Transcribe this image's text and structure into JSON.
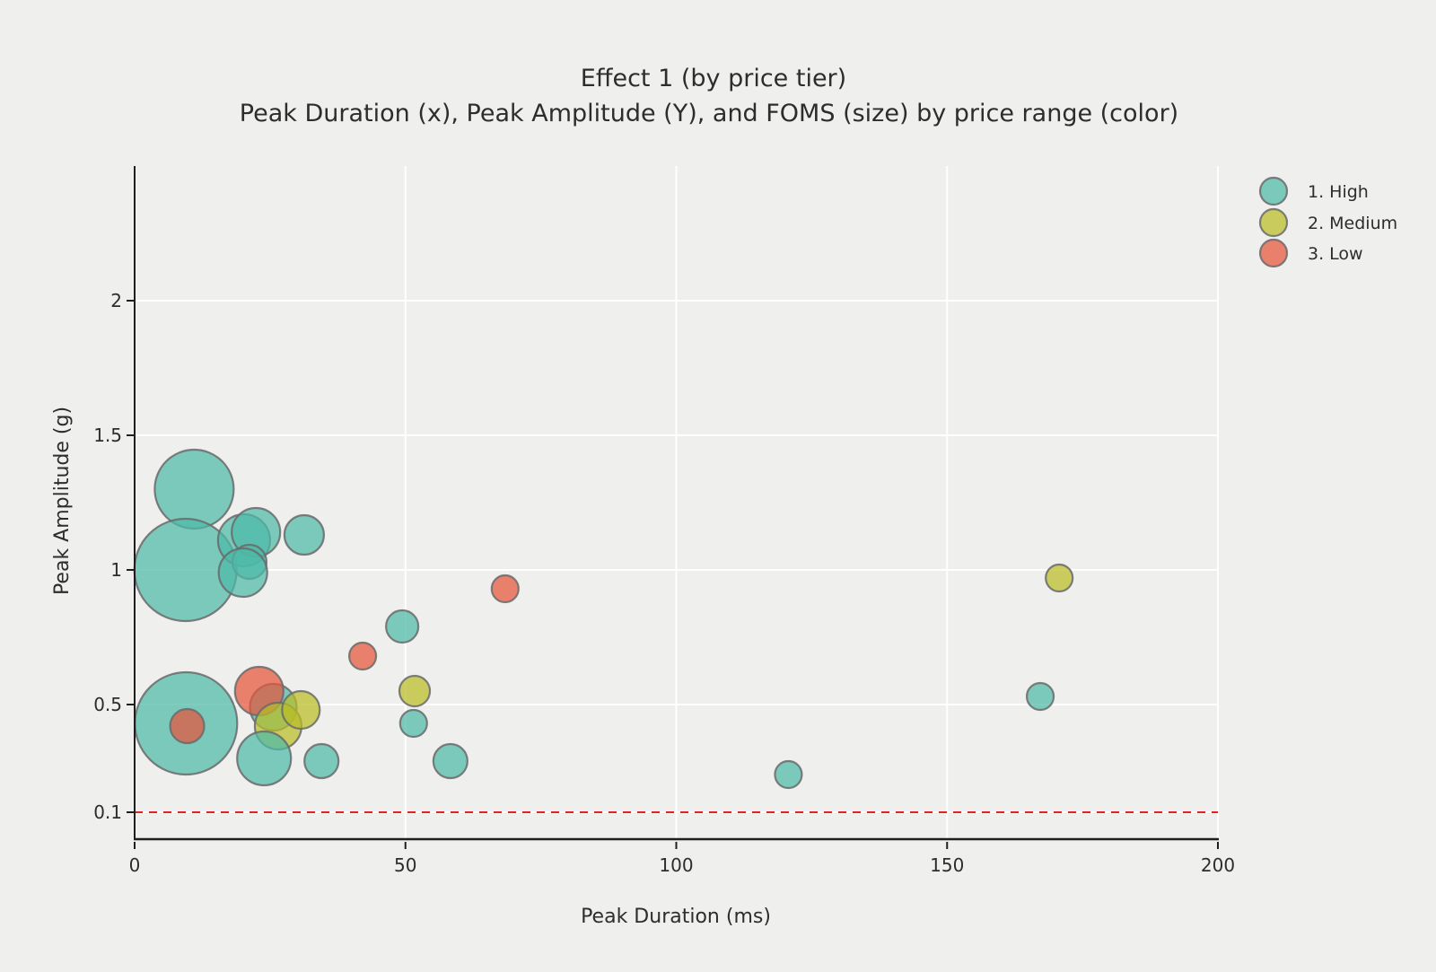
{
  "chart_data": {
    "type": "scatter",
    "subtype": "bubble",
    "title": "Effect 1 (by price tier)",
    "subtitle": "Peak Duration (x), Peak Amplitude (Y), and FOMS (size) by price range (color)",
    "xlabel": "Peak Duration (ms)",
    "ylabel": "Peak Amplitude (g)",
    "xlim": [
      0,
      200
    ],
    "ylim": [
      0,
      2.5
    ],
    "xticks": [
      0,
      50,
      100,
      150,
      200
    ],
    "xtick_labels": [
      "0",
      "50",
      "100",
      "150",
      "200"
    ],
    "yticks": [
      0.1,
      0.5,
      1,
      1.5,
      2
    ],
    "ytick_labels": [
      "0.1",
      "0.5",
      "1",
      "1.5",
      "2"
    ],
    "grid": true,
    "grid_color": "#ffffff",
    "background_color": "#efefee",
    "legend_position": "top-right",
    "size_encoding": "FOMS",
    "color_encoding": "price range",
    "reference_line": {
      "y": 0.1,
      "color": "#e02424",
      "style": "dashed"
    },
    "bubble_stroke_color": "#6a6a6a",
    "series": [
      {
        "name": "1. High",
        "color": "#4cbaa8",
        "points": [
          [
            11,
            1.3,
            44
          ],
          [
            9.4,
            1.0,
            57
          ],
          [
            20.2,
            1.11,
            29
          ],
          [
            22.4,
            1.14,
            27
          ],
          [
            21.2,
            1.03,
            19
          ],
          [
            31.3,
            1.13,
            22
          ],
          [
            20.0,
            0.99,
            27
          ],
          [
            9.5,
            0.43,
            57
          ],
          [
            25.6,
            0.49,
            26
          ],
          [
            23.9,
            0.3,
            30
          ],
          [
            34.5,
            0.29,
            19
          ],
          [
            49.4,
            0.79,
            18
          ],
          [
            51.5,
            0.43,
            15
          ],
          [
            58.3,
            0.29,
            19
          ],
          [
            120.7,
            0.24,
            15
          ],
          [
            167.2,
            0.53,
            15
          ]
        ]
      },
      {
        "name": "2. Medium",
        "color": "#babd26",
        "points": [
          [
            26.5,
            0.42,
            26
          ],
          [
            30.7,
            0.48,
            21
          ],
          [
            51.7,
            0.55,
            17
          ],
          [
            170.7,
            0.97,
            15
          ]
        ]
      },
      {
        "name": "3. Low",
        "color": "#e5543a",
        "points": [
          [
            9.7,
            0.42,
            19
          ],
          [
            23.0,
            0.55,
            27
          ],
          [
            42.1,
            0.68,
            15
          ],
          [
            68.4,
            0.93,
            15
          ]
        ]
      }
    ],
    "draw_order": [
      [
        0,
        0
      ],
      [
        0,
        1
      ],
      [
        0,
        2
      ],
      [
        0,
        3
      ],
      [
        0,
        4
      ],
      [
        0,
        5
      ],
      [
        0,
        6
      ],
      [
        0,
        7
      ],
      [
        2,
        0
      ],
      [
        0,
        8
      ],
      [
        2,
        1
      ],
      [
        1,
        0
      ],
      [
        1,
        1
      ],
      [
        0,
        9
      ],
      [
        0,
        10
      ],
      [
        0,
        11
      ],
      [
        1,
        2
      ],
      [
        0,
        12
      ],
      [
        0,
        13
      ],
      [
        2,
        2
      ],
      [
        2,
        3
      ],
      [
        0,
        14
      ],
      [
        0,
        15
      ],
      [
        1,
        3
      ]
    ]
  }
}
